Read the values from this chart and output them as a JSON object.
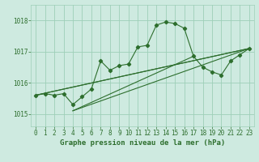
{
  "title": "Graphe pression niveau de la mer (hPa)",
  "bg_color": "#ceeae0",
  "grid_color": "#9ecfb8",
  "line_color": "#2d6e2d",
  "xlim": [
    -0.5,
    23.5
  ],
  "ylim": [
    1014.6,
    1018.5
  ],
  "yticks": [
    1015,
    1016,
    1017,
    1018
  ],
  "xticks": [
    0,
    1,
    2,
    3,
    4,
    5,
    6,
    7,
    8,
    9,
    10,
    11,
    12,
    13,
    14,
    15,
    16,
    17,
    18,
    19,
    20,
    21,
    22,
    23
  ],
  "main_series_x": [
    0,
    1,
    2,
    3,
    4,
    5,
    6,
    7,
    8,
    9,
    10,
    11,
    12,
    13,
    14,
    15,
    16,
    17,
    18,
    19,
    20,
    21,
    22,
    23
  ],
  "main_series_y": [
    1015.6,
    1015.65,
    1015.6,
    1015.65,
    1015.3,
    1015.55,
    1015.8,
    1016.7,
    1016.4,
    1016.55,
    1016.6,
    1017.15,
    1017.2,
    1017.85,
    1017.95,
    1017.9,
    1017.75,
    1016.85,
    1016.5,
    1016.35,
    1016.25,
    1016.7,
    1016.9,
    1017.1
  ],
  "extra_lines": [
    {
      "x": [
        0,
        23
      ],
      "y": [
        1015.6,
        1017.1
      ]
    },
    {
      "x": [
        0,
        23
      ],
      "y": [
        1015.6,
        1017.1
      ]
    },
    {
      "x": [
        4,
        23
      ],
      "y": [
        1015.1,
        1017.1
      ]
    },
    {
      "x": [
        4,
        17
      ],
      "y": [
        1015.1,
        1016.85
      ]
    }
  ],
  "tick_fontsize": 5.5,
  "xlabel_fontsize": 6.5
}
